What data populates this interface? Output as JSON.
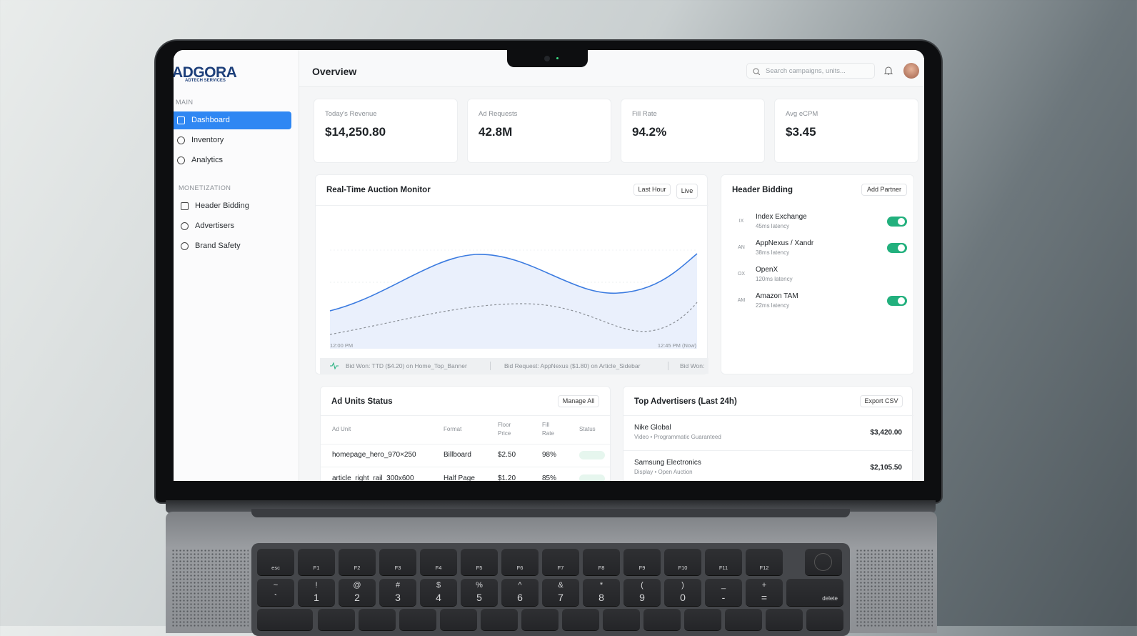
{
  "sidebar": {
    "logo": "ADGORA",
    "logo_sub": "ADTECH SERVICES",
    "sections": [
      {
        "title": "MAIN",
        "items": [
          "Dashboard",
          "Inventory",
          "Analytics"
        ]
      },
      {
        "title": "MONETIZATION",
        "items": [
          "Header Bidding",
          "Advertisers",
          "Brand Safety"
        ]
      }
    ]
  },
  "header": {
    "title": "Overview",
    "search_placeholder": "Search campaigns, units..."
  },
  "kpis": [
    {
      "label": "Today's Revenue",
      "value": "$14,250.80"
    },
    {
      "label": "Ad Requests",
      "value": "42.8M"
    },
    {
      "label": "Fill Rate",
      "value": "94.2%"
    },
    {
      "label": "Avg eCPM",
      "value": "$3.45"
    }
  ],
  "auction_monitor": {
    "title": "Real-Time Auction Monitor",
    "buttons": [
      "Last Hour",
      "Live"
    ],
    "x_start": "12:00 PM",
    "x_end": "12:45 PM (Now)",
    "ticker": [
      "Bid Won: TTD ($4.20) on Home_Top_Banner",
      "Bid Request: AppNexus ($1.80) on Article_Sidebar",
      "Bid Won:"
    ]
  },
  "header_bidding": {
    "title": "Header Bidding",
    "button": "Add Partner",
    "partners": [
      {
        "code": "IX",
        "name": "Index Exchange",
        "latency": "45ms latency",
        "enabled": true
      },
      {
        "code": "AN",
        "name": "AppNexus / Xandr",
        "latency": "38ms latency",
        "enabled": true
      },
      {
        "code": "OX",
        "name": "OpenX",
        "latency": "120ms latency",
        "enabled": false
      },
      {
        "code": "AM",
        "name": "Amazon TAM",
        "latency": "22ms latency",
        "enabled": true
      }
    ]
  },
  "ad_units": {
    "title": "Ad Units Status",
    "button": "Manage All",
    "columns": [
      "Ad Unit",
      "Format",
      "Floor Price",
      "Fill Rate",
      "Status"
    ],
    "rows": [
      [
        "homepage_hero_970×250",
        "Billboard",
        "$2.50",
        "98%"
      ],
      [
        "article_right_rail_300x600",
        "Half Page",
        "$1.20",
        "85%"
      ]
    ]
  },
  "top_advertisers": {
    "title": "Top Advertisers (Last 24h)",
    "button": "Export CSV",
    "rows": [
      {
        "name": "Nike Global",
        "detail": "Video • Programmatic Guaranteed",
        "amount": "$3,420.00"
      },
      {
        "name": "Samsung Electronics",
        "detail": "Display • Open Auction",
        "amount": "$2,105.50"
      }
    ]
  },
  "keyboard": {
    "function_row": [
      "esc",
      "F1",
      "F2",
      "F3",
      "F4",
      "F5",
      "F6",
      "F7",
      "F8",
      "F9",
      "F10",
      "F11",
      "F12"
    ],
    "number_row": [
      [
        "~",
        "`"
      ],
      [
        "!",
        "1"
      ],
      [
        "@",
        "2"
      ],
      [
        "#",
        "3"
      ],
      [
        "$",
        "4"
      ],
      [
        "%",
        "5"
      ],
      [
        "^",
        "6"
      ],
      [
        "&",
        "7"
      ],
      [
        "*",
        "8"
      ],
      [
        "(",
        "9"
      ],
      [
        ")",
        "0"
      ],
      [
        "_",
        "-"
      ],
      [
        "+",
        "="
      ]
    ],
    "delete": "delete"
  }
}
